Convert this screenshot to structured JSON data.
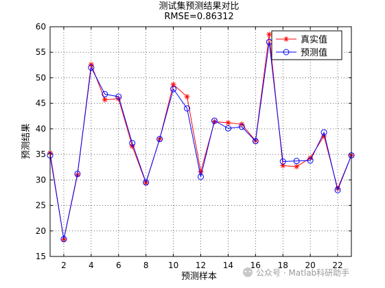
{
  "chart_data": {
    "type": "line",
    "title": "测试集预测结果对比",
    "subtitle": "RMSE=0.86312",
    "xlabel": "预测样本",
    "ylabel": "预测结果",
    "xlim": [
      1,
      23
    ],
    "ylim": [
      15,
      60
    ],
    "xticks": [
      2,
      4,
      6,
      8,
      10,
      12,
      14,
      16,
      18,
      20,
      22
    ],
    "yticks": [
      15,
      20,
      25,
      30,
      35,
      40,
      45,
      50,
      55,
      60
    ],
    "grid": true,
    "legend_position": "top-right",
    "x": [
      1,
      2,
      3,
      4,
      5,
      6,
      7,
      8,
      9,
      10,
      11,
      12,
      13,
      14,
      15,
      16,
      17,
      18,
      19,
      20,
      21,
      22,
      23
    ],
    "series": [
      {
        "name": "真实值",
        "color": "#ff0000",
        "marker": "asterisk",
        "values": [
          35.3,
          18.3,
          31.0,
          52.6,
          45.7,
          45.9,
          36.6,
          29.4,
          38.0,
          48.7,
          46.3,
          31.6,
          41.4,
          41.2,
          40.9,
          37.7,
          58.5,
          32.8,
          32.6,
          34.3,
          38.6,
          28.3,
          34.8
        ]
      },
      {
        "name": "预测值",
        "color": "#0000ff",
        "marker": "circle",
        "values": [
          34.8,
          18.4,
          31.2,
          52.0,
          46.8,
          46.3,
          37.2,
          29.5,
          38.0,
          47.8,
          44.0,
          30.6,
          41.6,
          40.1,
          40.4,
          37.6,
          57.0,
          33.6,
          33.7,
          33.8,
          39.3,
          28.0,
          34.8
        ]
      }
    ]
  },
  "watermark": {
    "icon": "wechat-icon",
    "text": "公众号 · Matlab科研助手"
  }
}
